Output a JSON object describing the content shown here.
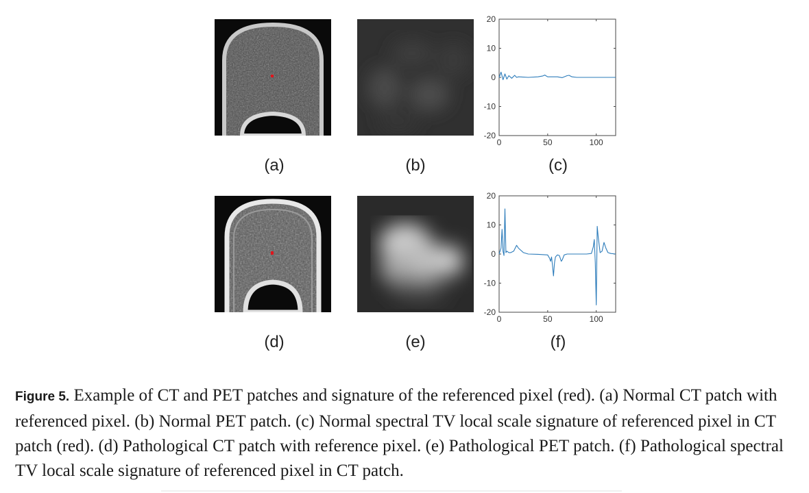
{
  "panels": {
    "a": {
      "label": "(a)"
    },
    "b": {
      "label": "(b)"
    },
    "c": {
      "label": "(c)"
    },
    "d": {
      "label": "(d)"
    },
    "e": {
      "label": "(e)"
    },
    "f": {
      "label": "(f)"
    }
  },
  "colors": {
    "signal": "#2b7bba",
    "reference_pixel": "#e0141b",
    "axis": "#555555"
  },
  "chart_data": [
    {
      "type": "line",
      "panel": "(c)",
      "x": [
        0,
        2,
        4,
        6,
        8,
        10,
        13,
        16,
        18,
        20,
        25,
        30,
        40,
        45,
        47,
        50,
        60,
        65,
        70,
        72,
        75,
        80,
        100,
        120
      ],
      "y": [
        0,
        1.8,
        -0.8,
        1.2,
        -0.6,
        0.6,
        -0.3,
        0.7,
        0,
        0.2,
        0.1,
        0,
        0.2,
        0.5,
        0.8,
        0.2,
        0.2,
        -0.1,
        0.6,
        0.7,
        0.2,
        0,
        0,
        0
      ],
      "xticks": [
        0,
        50,
        100
      ],
      "yticks": [
        -20,
        -10,
        0,
        10,
        20
      ],
      "xlim": [
        0,
        120
      ],
      "ylim": [
        -20,
        20
      ]
    },
    {
      "type": "line",
      "panel": "(f)",
      "x": [
        0,
        2,
        3,
        4,
        5,
        6,
        7,
        8,
        10,
        12,
        15,
        18,
        20,
        25,
        30,
        40,
        50,
        52,
        53,
        54,
        55,
        56,
        57,
        58,
        60,
        62,
        63,
        64,
        65,
        67,
        70,
        80,
        90,
        95,
        97,
        98,
        99,
        100,
        101,
        102,
        104,
        106,
        108,
        110,
        112,
        115,
        120
      ],
      "y": [
        0,
        2,
        8.5,
        1,
        -0.5,
        15.5,
        0.5,
        1,
        0.5,
        0.5,
        1,
        3,
        2,
        0.5,
        0,
        -0.1,
        -0.3,
        -1.5,
        -2.5,
        -1,
        -4,
        -7.5,
        -3,
        -1,
        -0.3,
        -0.5,
        -1.5,
        -2.5,
        -2,
        -0.3,
        0,
        0,
        0,
        0.2,
        2.5,
        5,
        -3,
        -17.5,
        9.5,
        6,
        0.5,
        1,
        4,
        2,
        0.5,
        0.2,
        0
      ],
      "xticks": [
        0,
        50,
        100
      ],
      "yticks": [
        -20,
        -10,
        0,
        10,
        20
      ],
      "xlim": [
        0,
        120
      ],
      "ylim": [
        -20,
        20
      ]
    }
  ],
  "caption": {
    "tag": "Figure 5.",
    "text": " Example of CT and PET patches and signature of the referenced pixel (red). (a) Normal CT patch with referenced pixel. (b) Normal PET patch. (c) Normal spectral TV local scale signature of referenced pixel in CT patch (red). (d) Pathological CT patch with reference pixel. (e) Pathological PET patch. (f) Pathological spectral TV local scale signature of referenced pixel in CT patch."
  }
}
